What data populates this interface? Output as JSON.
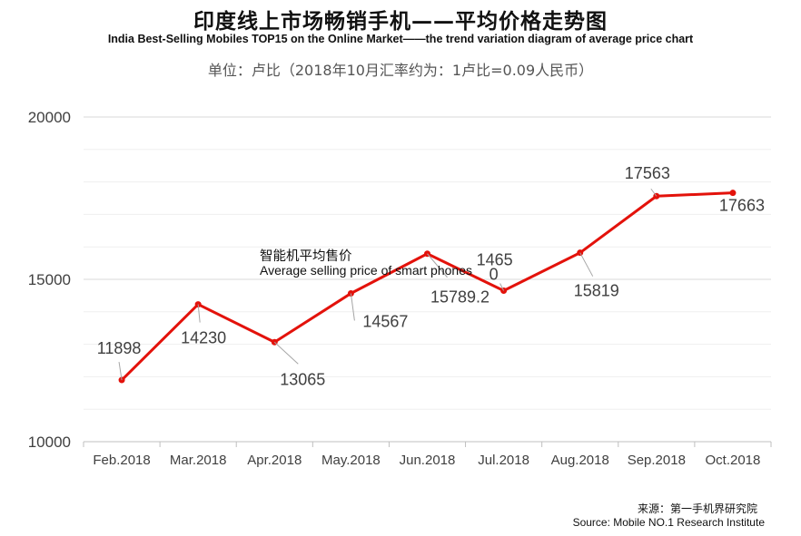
{
  "title": "印度线上市场畅销手机——平均价格走势图",
  "subtitle": "India Best-Selling  Mobiles TOP15 on the Online Market——the trend variation diagram of average price chart",
  "unit": "单位：卢比（2018年10月汇率约为：1卢比=0.09人民币）",
  "series_label_cn": "智能机平均售价",
  "series_label_en": "Average selling price of smart phones",
  "source_cn": "来源：第一手机界研究院",
  "source_en": "Source: Mobile NO.1 Research Institute",
  "colors": {
    "line": "#e3120b",
    "grid": "#d9d9d9",
    "text": "#404040",
    "axis": "#bfbfbf",
    "leader": "#a6a6a6"
  },
  "chart_data": {
    "type": "line",
    "categories": [
      "Feb.2018",
      "Mar.2018",
      "Apr.2018",
      "May.2018",
      "Jun.2018",
      "Jul.2018",
      "Aug.2018",
      "Sep.2018",
      "Oct.2018"
    ],
    "values": [
      11898,
      14230,
      13065,
      14567,
      15789.2,
      14650,
      15819,
      17563,
      17663
    ],
    "data_labels": [
      "11898",
      "14230",
      "13065",
      "14567",
      "15789.2",
      "1465\n0",
      "15819",
      "17563",
      "17663"
    ],
    "ylim": [
      10000,
      20000
    ],
    "yticks": [
      10000,
      15000,
      20000
    ],
    "ytick_labels": [
      "10000",
      "15000",
      "20000"
    ],
    "grid": true
  }
}
